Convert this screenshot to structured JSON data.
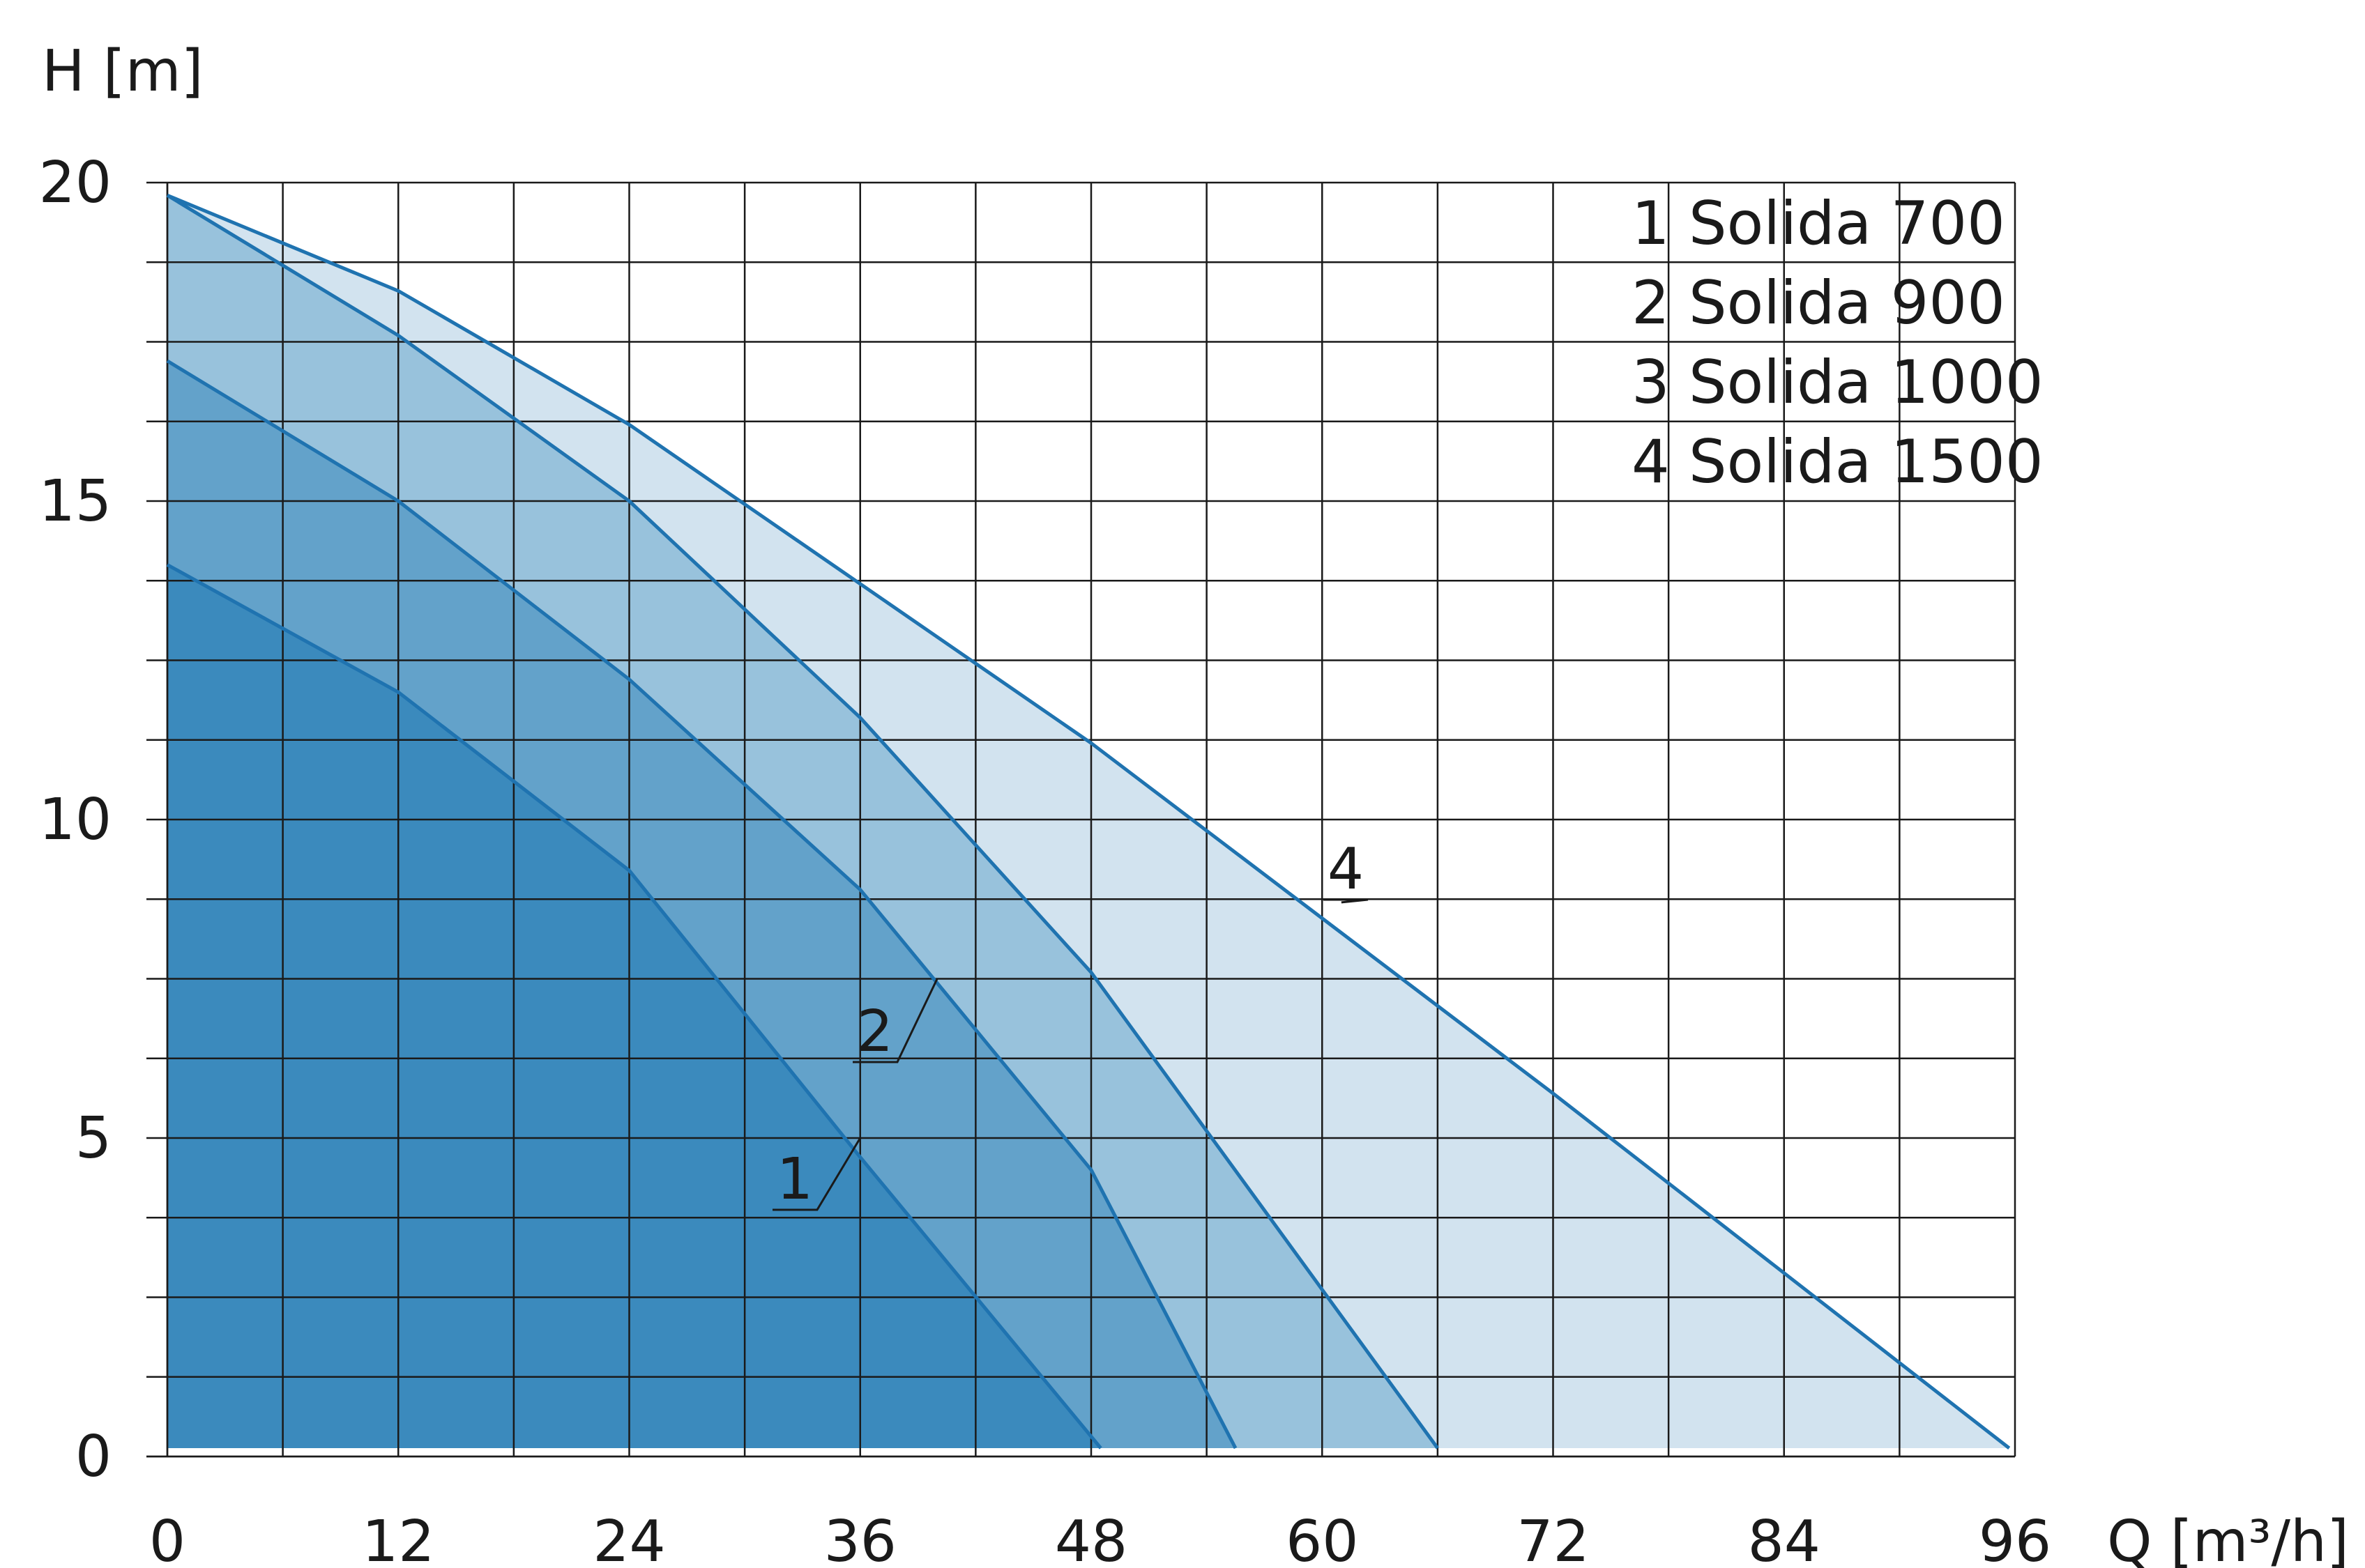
{
  "chart_data": {
    "type": "area",
    "xlabel": "Q [m³/h]",
    "ylabel": "H [m]",
    "xlim": [
      0,
      96
    ],
    "ylim": [
      0,
      20
    ],
    "x_ticks": [
      0,
      12,
      24,
      36,
      48,
      60,
      72,
      84,
      96
    ],
    "y_ticks": [
      0,
      5,
      10,
      15,
      20
    ],
    "grid": true,
    "legend_position": "top-right",
    "legend": [
      "1 Solida 700",
      "2 Solida 900",
      "3 Solida 1000",
      "4 Solida 1500"
    ],
    "series": [
      {
        "label": "1",
        "color": "#3b8abd",
        "points": [
          [
            0,
            14.0
          ],
          [
            12,
            12.0
          ],
          [
            24,
            9.2
          ],
          [
            36,
            4.7
          ],
          [
            48.5,
            0
          ]
        ]
      },
      {
        "label": "2",
        "color": "#63a2ca",
        "points": [
          [
            0,
            17.2
          ],
          [
            12,
            15.0
          ],
          [
            24,
            12.2
          ],
          [
            36,
            8.9
          ],
          [
            48,
            4.5
          ],
          [
            55.5,
            0
          ]
        ]
      },
      {
        "label": "3",
        "color": "#98c2dc",
        "points": [
          [
            0,
            19.8
          ],
          [
            12,
            17.6
          ],
          [
            24,
            15.0
          ],
          [
            36,
            11.6
          ],
          [
            48,
            7.6
          ],
          [
            66,
            0
          ]
        ]
      },
      {
        "label": "4",
        "color": "#d2e3ef",
        "points": [
          [
            0,
            19.8
          ],
          [
            12,
            18.3
          ],
          [
            24,
            16.2
          ],
          [
            36,
            13.7
          ],
          [
            48,
            11.2
          ],
          [
            72,
            5.7
          ],
          [
            95.7,
            0
          ]
        ]
      }
    ]
  }
}
